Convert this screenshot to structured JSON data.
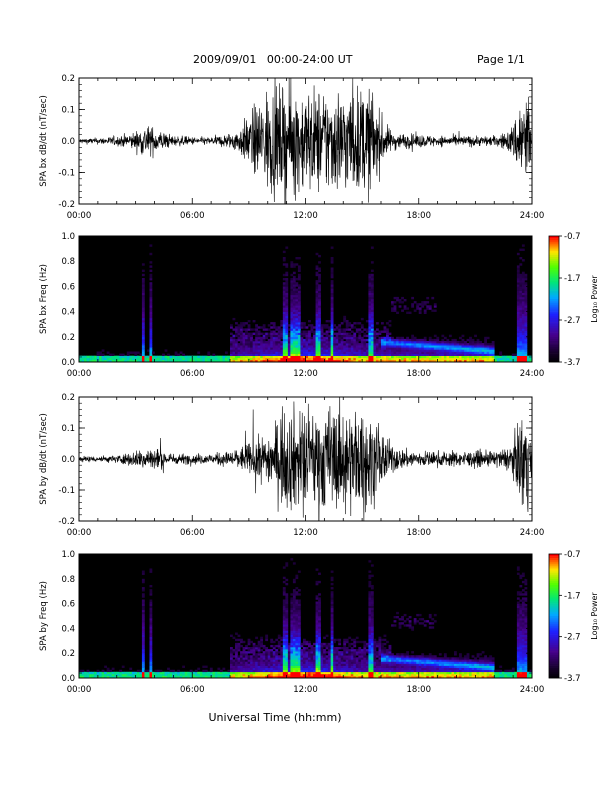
{
  "header": {
    "title": "2009/09/01   00:00-24:00 UT",
    "page": "Page 1/1"
  },
  "xaxis_title": "Universal Time (hh:mm)",
  "colorbar_label": "Log₁₀ Power",
  "colorbar_ticks": [
    "-0.7",
    "-1.7",
    "-2.7",
    "-3.7"
  ],
  "chart_data": [
    {
      "type": "line",
      "ylabel": "SPA bx dB/dt (nT/sec)",
      "xlim": [
        0,
        24
      ],
      "ylim": [
        -0.2,
        0.2
      ],
      "x_ticks": [
        "00:00",
        "06:00",
        "12:00",
        "18:00",
        "24:00"
      ],
      "y_ticks": [
        "0.2",
        "0.1",
        "0.0",
        "-0.1",
        "-0.2"
      ],
      "envelope": {
        "hours": [
          0,
          1,
          2,
          3,
          3.5,
          4,
          5,
          6,
          7,
          8,
          8.5,
          9,
          10,
          11,
          12,
          13,
          14,
          15,
          15.5,
          16,
          16.5,
          17,
          18,
          19,
          20,
          21,
          22,
          22.5,
          23,
          23.5,
          23.8,
          24
        ],
        "amplitude": [
          0.01,
          0.012,
          0.018,
          0.035,
          0.06,
          0.05,
          0.02,
          0.015,
          0.015,
          0.03,
          0.05,
          0.1,
          0.2,
          0.2,
          0.2,
          0.2,
          0.2,
          0.2,
          0.2,
          0.1,
          0.04,
          0.03,
          0.025,
          0.02,
          0.02,
          0.02,
          0.02,
          0.03,
          0.06,
          0.2,
          0.2,
          0.03
        ]
      }
    },
    {
      "type": "heatmap",
      "ylabel": "SPA bx Freq (Hz)",
      "xlim": [
        0,
        24
      ],
      "ylim": [
        0,
        1.0
      ],
      "x_ticks": [
        "00:00",
        "06:00",
        "12:00",
        "18:00",
        "24:00"
      ],
      "y_ticks": [
        "1.0",
        "0.8",
        "0.6",
        "0.4",
        "0.2",
        "0.0"
      ],
      "zlim": [
        -3.7,
        -0.7
      ],
      "zlabel": "Log₁₀ Power"
    },
    {
      "type": "line",
      "ylabel": "SPA by dB/dt (nT/sec)",
      "xlim": [
        0,
        24
      ],
      "ylim": [
        -0.2,
        0.2
      ],
      "x_ticks": [
        "00:00",
        "06:00",
        "12:00",
        "18:00",
        "24:00"
      ],
      "y_ticks": [
        "0.2",
        "0.1",
        "0.0",
        "-0.1",
        "-0.2"
      ],
      "envelope": {
        "hours": [
          0,
          1,
          2,
          3,
          3.5,
          4,
          5,
          6,
          7,
          8,
          9,
          10,
          11,
          12,
          13,
          14,
          15,
          16,
          16.5,
          17,
          18,
          19,
          20,
          21,
          22,
          22.5,
          23,
          23.5,
          23.8,
          24
        ],
        "amplitude": [
          0.012,
          0.012,
          0.015,
          0.03,
          0.05,
          0.045,
          0.02,
          0.02,
          0.02,
          0.03,
          0.06,
          0.1,
          0.2,
          0.2,
          0.2,
          0.2,
          0.2,
          0.12,
          0.06,
          0.04,
          0.03,
          0.03,
          0.03,
          0.03,
          0.03,
          0.04,
          0.06,
          0.2,
          0.2,
          0.03
        ]
      }
    },
    {
      "type": "heatmap",
      "ylabel": "SPA by Freq (Hz)",
      "xlim": [
        0,
        24
      ],
      "ylim": [
        0,
        1.0
      ],
      "x_ticks": [
        "00:00",
        "06:00",
        "12:00",
        "18:00",
        "24:00"
      ],
      "y_ticks": [
        "1.0",
        "0.8",
        "0.6",
        "0.4",
        "0.2",
        "0.0"
      ],
      "zlim": [
        -3.7,
        -0.7
      ],
      "zlabel": "Log₁₀ Power"
    }
  ]
}
